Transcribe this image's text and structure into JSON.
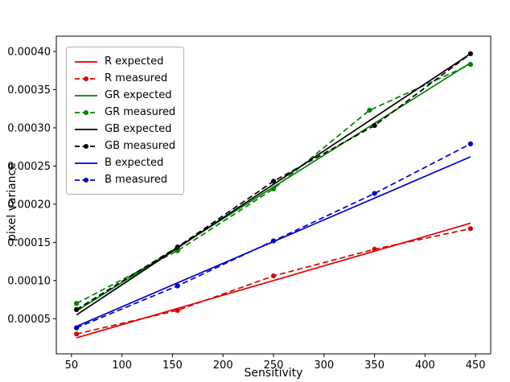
{
  "figure": {
    "background": "#ffffff",
    "axis_color": "#000000"
  },
  "chart_data": {
    "type": "line",
    "title": "",
    "xlabel": "Sensitivity",
    "ylabel": "pixel variance",
    "xlim": [
      35,
      465
    ],
    "ylim": [
      4e-06,
      0.00042
    ],
    "grid": false,
    "legend_position": "upper left",
    "x_ticks": [
      50,
      100,
      150,
      200,
      250,
      300,
      350,
      400,
      450
    ],
    "y_ticks": [
      5e-05,
      0.0001,
      0.00015,
      0.0002,
      0.00025,
      0.0003,
      0.00035,
      0.0004
    ],
    "y_tick_labels": [
      "0.00005",
      "0.00010",
      "0.00015",
      "0.00020",
      "0.00025",
      "0.00030",
      "0.00035",
      "0.00040"
    ],
    "series": [
      {
        "name": "R expected",
        "color": "#dc0000",
        "style": "solid",
        "marker": false,
        "x": [
          55,
          445
        ],
        "y": [
          2.5e-05,
          0.000175
        ]
      },
      {
        "name": "R measured",
        "color": "#dc0000",
        "style": "dashed",
        "marker": true,
        "x": [
          55,
          155,
          250,
          350,
          445
        ],
        "y": [
          3e-05,
          6.1e-05,
          0.000106,
          0.000141,
          0.000168
        ]
      },
      {
        "name": "GR expected",
        "color": "#008000",
        "style": "solid",
        "marker": false,
        "x": [
          55,
          445
        ],
        "y": [
          6e-05,
          0.000385
        ]
      },
      {
        "name": "GR measured",
        "color": "#008000",
        "style": "dashed",
        "marker": true,
        "x": [
          55,
          155,
          250,
          345,
          445
        ],
        "y": [
          7e-05,
          0.000139,
          0.00022,
          0.000323,
          0.000383
        ]
      },
      {
        "name": "GB expected",
        "color": "#000000",
        "style": "solid",
        "marker": false,
        "x": [
          55,
          445
        ],
        "y": [
          5.5e-05,
          0.000397
        ]
      },
      {
        "name": "GB measured",
        "color": "#000000",
        "style": "dashed",
        "marker": true,
        "x": [
          55,
          155,
          250,
          350,
          445
        ],
        "y": [
          6.2e-05,
          0.000144,
          0.00023,
          0.000303,
          0.000397
        ]
      },
      {
        "name": "B expected",
        "color": "#0000cd",
        "style": "solid",
        "marker": false,
        "x": [
          55,
          445
        ],
        "y": [
          4e-05,
          0.000262
        ]
      },
      {
        "name": "B measured",
        "color": "#0000cd",
        "style": "dashed",
        "marker": true,
        "x": [
          55,
          155,
          250,
          350,
          445
        ],
        "y": [
          3.8e-05,
          9.3e-05,
          0.000152,
          0.000214,
          0.000279
        ]
      }
    ]
  }
}
